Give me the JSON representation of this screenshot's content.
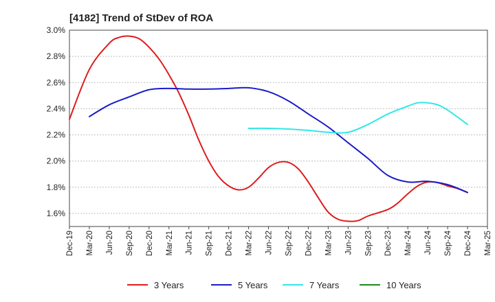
{
  "chart_data": {
    "type": "line",
    "title": "[4182]  Trend of StDev of ROA",
    "xlabel": "",
    "ylabel": "",
    "x_ticks": [
      "Dec-19",
      "Mar-20",
      "Jun-20",
      "Sep-20",
      "Dec-20",
      "Mar-21",
      "Jun-21",
      "Sep-21",
      "Dec-21",
      "Mar-22",
      "Jun-22",
      "Sep-22",
      "Dec-22",
      "Mar-23",
      "Jun-23",
      "Sep-23",
      "Dec-23",
      "Mar-24",
      "Jun-24",
      "Sep-24",
      "Dec-24",
      "Mar-25"
    ],
    "y_ticks": [
      "1.6%",
      "1.8%",
      "2.0%",
      "2.2%",
      "2.4%",
      "2.6%",
      "2.8%",
      "3.0%"
    ],
    "ylim": [
      1.5,
      3.0
    ],
    "grid": "horizontal",
    "legend_position": "bottom",
    "series": [
      {
        "name": "3 Years",
        "color": "#dd1c1c",
        "points": [
          [
            0,
            2.32
          ],
          [
            1,
            2.7
          ],
          [
            2,
            2.9
          ],
          [
            2.5,
            2.945
          ],
          [
            3,
            2.955
          ],
          [
            3.5,
            2.935
          ],
          [
            4,
            2.87
          ],
          [
            4.5,
            2.78
          ],
          [
            5,
            2.66
          ],
          [
            5.5,
            2.52
          ],
          [
            6,
            2.35
          ],
          [
            6.5,
            2.16
          ],
          [
            7,
            2.0
          ],
          [
            7.5,
            1.88
          ],
          [
            8,
            1.81
          ],
          [
            8.5,
            1.78
          ],
          [
            9,
            1.8
          ],
          [
            9.5,
            1.87
          ],
          [
            10,
            1.95
          ],
          [
            10.5,
            1.99
          ],
          [
            11,
            1.99
          ],
          [
            11.5,
            1.94
          ],
          [
            12,
            1.84
          ],
          [
            12.5,
            1.72
          ],
          [
            13,
            1.61
          ],
          [
            13.5,
            1.555
          ],
          [
            14,
            1.54
          ],
          [
            14.5,
            1.545
          ],
          [
            15,
            1.58
          ],
          [
            16,
            1.63
          ],
          [
            16.5,
            1.68
          ],
          [
            17,
            1.75
          ],
          [
            17.5,
            1.81
          ],
          [
            18,
            1.84
          ],
          [
            18.5,
            1.835
          ],
          [
            19,
            1.81
          ],
          [
            19.5,
            1.79
          ],
          [
            20,
            1.76
          ]
        ]
      },
      {
        "name": "5 Years",
        "color": "#1a1ac8",
        "points": [
          [
            1,
            2.34
          ],
          [
            2,
            2.43
          ],
          [
            3,
            2.49
          ],
          [
            4,
            2.545
          ],
          [
            5,
            2.555
          ],
          [
            6,
            2.55
          ],
          [
            7,
            2.55
          ],
          [
            8,
            2.555
          ],
          [
            9,
            2.56
          ],
          [
            10,
            2.53
          ],
          [
            11,
            2.46
          ],
          [
            12,
            2.36
          ],
          [
            13,
            2.26
          ],
          [
            14,
            2.14
          ],
          [
            15,
            2.02
          ],
          [
            16,
            1.89
          ],
          [
            17,
            1.84
          ],
          [
            18,
            1.845
          ],
          [
            19,
            1.82
          ],
          [
            20,
            1.76
          ]
        ]
      },
      {
        "name": "7 Years",
        "color": "#2ee8e8",
        "points": [
          [
            9,
            2.25
          ],
          [
            10,
            2.25
          ],
          [
            11,
            2.245
          ],
          [
            12,
            2.235
          ],
          [
            13,
            2.22
          ],
          [
            14,
            2.22
          ],
          [
            15,
            2.28
          ],
          [
            16,
            2.36
          ],
          [
            17,
            2.42
          ],
          [
            17.5,
            2.445
          ],
          [
            18,
            2.445
          ],
          [
            18.5,
            2.43
          ],
          [
            19,
            2.39
          ],
          [
            20,
            2.28
          ]
        ]
      },
      {
        "name": "10 Years",
        "color": "#1a8a1a",
        "points": []
      }
    ]
  }
}
